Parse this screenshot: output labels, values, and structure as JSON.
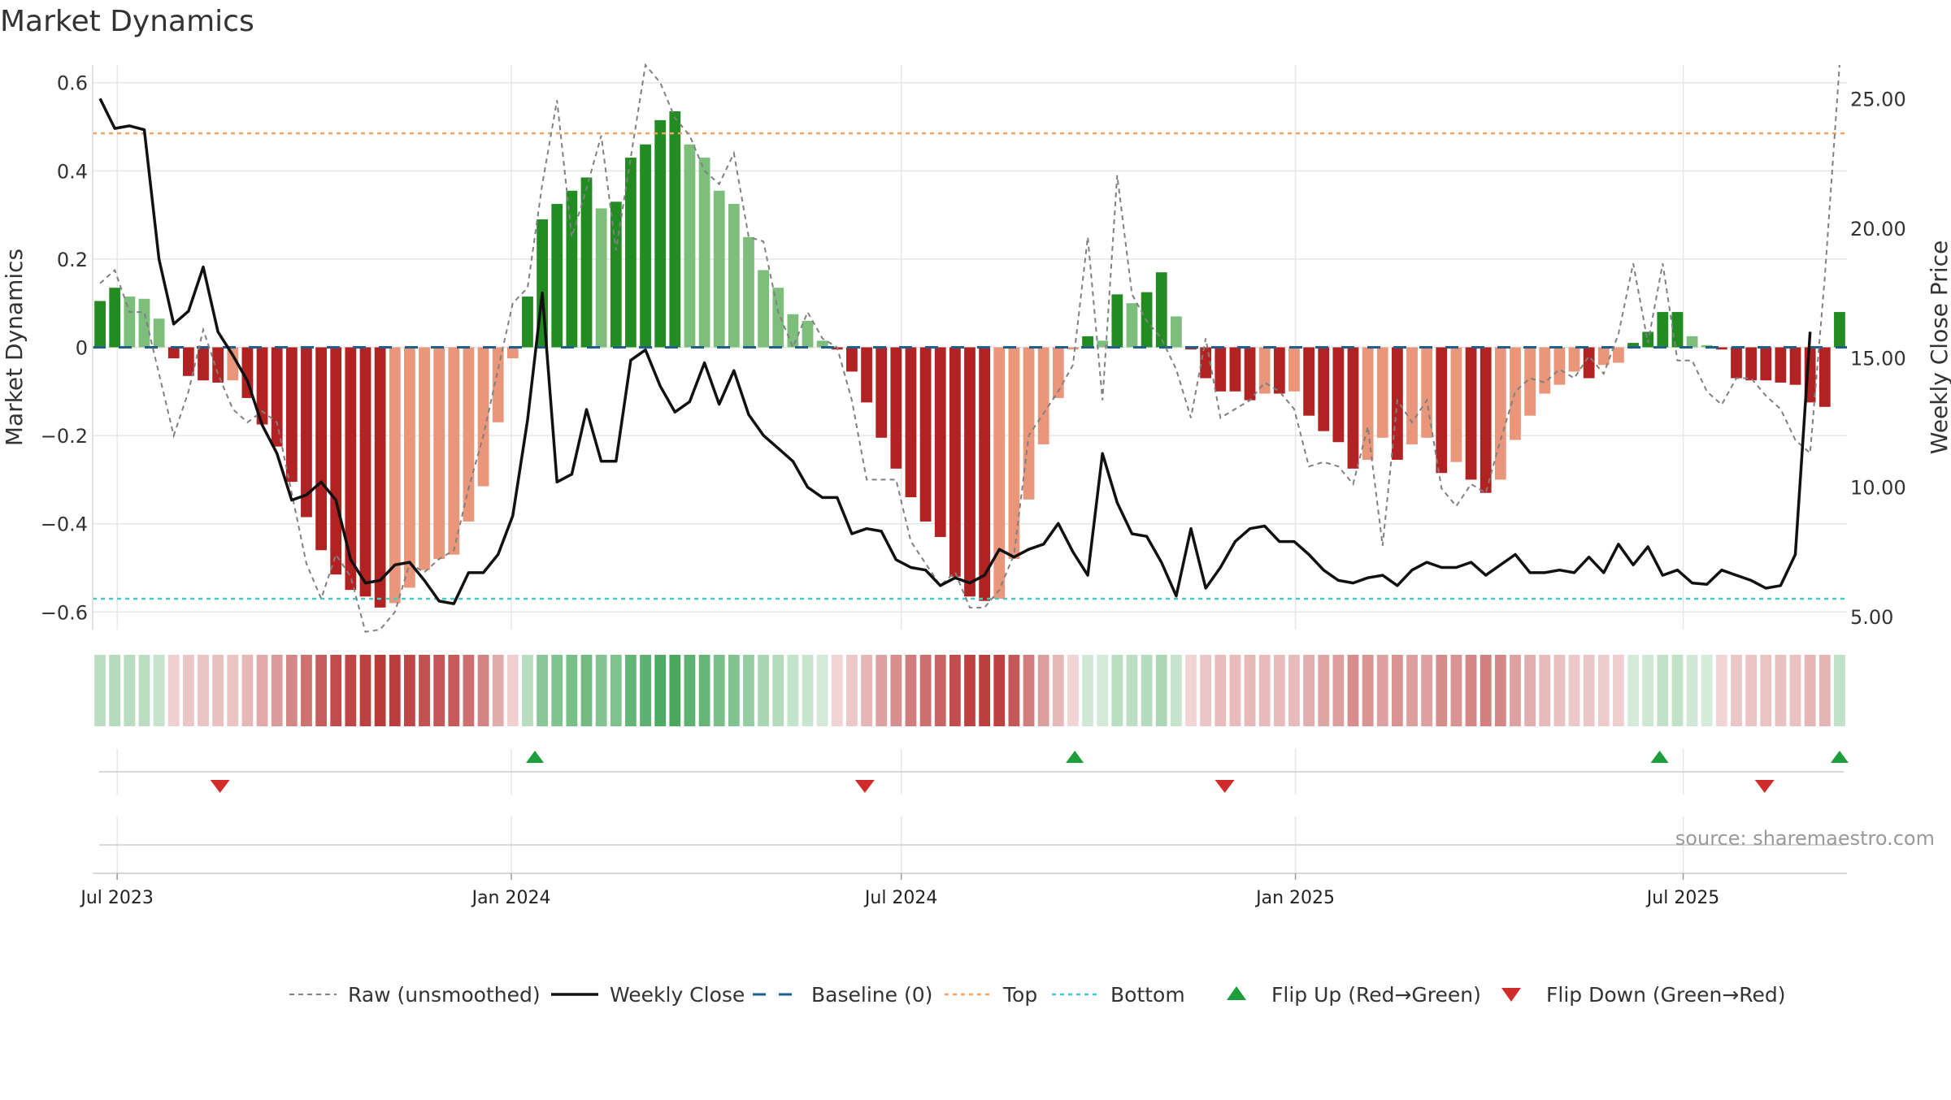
{
  "title": "Market Dynamics",
  "source": "source: sharemaestro.com",
  "colors": {
    "strong_green": "#228B22",
    "light_green": "#7DBE7D",
    "strong_red": "#B22222",
    "light_red": "#E9967A",
    "top_line": "#F4A460",
    "bottom_line": "#48C9C9",
    "baseline": "#1F5F8B",
    "raw_line": "#808080",
    "close_line": "#111111",
    "flip_up": "#1E9E3A",
    "flip_down": "#D22B2B",
    "grid": "#E6E6E6",
    "text": "#333333"
  },
  "legend": [
    {
      "label": "Raw (unsmoothed)",
      "icon": "dashed-gray-line"
    },
    {
      "label": "Weekly Close",
      "icon": "solid-black-line"
    },
    {
      "label": "Baseline (0)",
      "icon": "dashed-blue-line"
    },
    {
      "label": "Top",
      "icon": "dotted-orange-line"
    },
    {
      "label": "Bottom",
      "icon": "dotted-cyan-line"
    },
    {
      "label": "Flip Up (Red→Green)",
      "icon": "green-up-triangle"
    },
    {
      "label": "Flip Down (Green→Red)",
      "icon": "red-down-triangle"
    }
  ],
  "chart_data": {
    "type": "bar",
    "title": "Market Dynamics",
    "ylabel": "Market Dynamics",
    "y2label": "Weekly Close Price",
    "ylim": [
      -0.64,
      0.64
    ],
    "y2lim": [
      4.5,
      26.3
    ],
    "yticks": [
      0.6,
      0.4,
      0.2,
      0,
      -0.2,
      -0.4,
      -0.6
    ],
    "ytick_labels": [
      "0.6",
      "0.4",
      "0.2",
      "0",
      "−0.2",
      "−0.4",
      "−0.6"
    ],
    "y2ticks": [
      25,
      20,
      15,
      10,
      5
    ],
    "y2tick_labels": [
      "25.00",
      "20.00",
      "15.00",
      "10.00",
      "5.00"
    ],
    "x_ticks": [
      "2023-07-01",
      "2024-01-01",
      "2024-07-01",
      "2025-01-01",
      "2025-07-01"
    ],
    "x_tick_labels": [
      "Jul 2023",
      "Jan 2024",
      "Jul 2024",
      "Jan 2025",
      "Jul 2025"
    ],
    "first_week": "2023-06-23",
    "last_week": "2025-09-12",
    "top": 0.485,
    "bottom": -0.57,
    "baseline": 0,
    "grid": true,
    "legend_position": "bottom",
    "series": [
      {
        "name": "Market Dynamics",
        "values": [
          0.105,
          0.135,
          0.115,
          0.11,
          0.065,
          -0.025,
          -0.065,
          -0.075,
          -0.08,
          -0.075,
          -0.115,
          -0.175,
          -0.225,
          -0.305,
          -0.385,
          -0.46,
          -0.515,
          -0.55,
          -0.565,
          -0.59,
          -0.58,
          -0.545,
          -0.505,
          -0.48,
          -0.47,
          -0.395,
          -0.315,
          -0.17,
          -0.025,
          0.115,
          0.29,
          0.325,
          0.355,
          0.385,
          0.315,
          0.33,
          0.43,
          0.46,
          0.515,
          0.535,
          0.46,
          0.43,
          0.355,
          0.325,
          0.25,
          0.175,
          0.135,
          0.075,
          0.06,
          0.015,
          -0.005,
          -0.055,
          -0.125,
          -0.205,
          -0.275,
          -0.34,
          -0.395,
          -0.43,
          -0.52,
          -0.565,
          -0.575,
          -0.57,
          -0.48,
          -0.345,
          -0.22,
          -0.115,
          -0.005,
          0.025,
          0.015,
          0.12,
          0.1,
          0.125,
          0.17,
          0.07,
          -0.005,
          -0.07,
          -0.1,
          -0.1,
          -0.12,
          -0.105,
          -0.105,
          -0.1,
          -0.155,
          -0.19,
          -0.215,
          -0.275,
          -0.255,
          -0.205,
          -0.255,
          -0.22,
          -0.205,
          -0.285,
          -0.26,
          -0.3,
          -0.33,
          -0.3,
          -0.21,
          -0.155,
          -0.105,
          -0.085,
          -0.055,
          -0.07,
          -0.04,
          -0.035,
          0.01,
          0.035,
          0.08,
          0.08,
          0.025,
          0.005,
          -0.005,
          -0.07,
          -0.075,
          -0.075,
          -0.08,
          -0.085,
          -0.125,
          -0.135,
          0.08
        ]
      },
      {
        "name": "Raw (unsmoothed)",
        "values": [
          0.145,
          0.175,
          0.08,
          0.08,
          -0.06,
          -0.2,
          -0.1,
          0.04,
          -0.06,
          -0.14,
          -0.17,
          -0.145,
          -0.17,
          -0.33,
          -0.49,
          -0.57,
          -0.47,
          -0.52,
          -0.645,
          -0.64,
          -0.6,
          -0.49,
          -0.51,
          -0.48,
          -0.46,
          -0.32,
          -0.2,
          -0.05,
          0.1,
          0.135,
          0.37,
          0.56,
          0.25,
          0.36,
          0.48,
          0.22,
          0.43,
          0.64,
          0.6,
          0.52,
          0.48,
          0.4,
          0.37,
          0.44,
          0.25,
          0.24,
          0.08,
          0.0,
          0.08,
          0.02,
          0.0,
          -0.12,
          -0.3,
          -0.3,
          -0.3,
          -0.44,
          -0.49,
          -0.54,
          -0.51,
          -0.59,
          -0.59,
          -0.55,
          -0.47,
          -0.2,
          -0.15,
          -0.1,
          -0.04,
          0.25,
          -0.12,
          0.39,
          0.12,
          0.06,
          0.02,
          -0.05,
          -0.16,
          0.02,
          -0.16,
          -0.14,
          -0.12,
          -0.08,
          -0.1,
          -0.14,
          -0.27,
          -0.26,
          -0.27,
          -0.31,
          -0.18,
          -0.45,
          -0.12,
          -0.17,
          -0.12,
          -0.32,
          -0.36,
          -0.31,
          -0.33,
          -0.21,
          -0.1,
          -0.07,
          -0.08,
          -0.05,
          -0.07,
          -0.02,
          -0.06,
          0.03,
          0.19,
          0.01,
          0.19,
          -0.03,
          -0.03,
          -0.1,
          -0.13,
          -0.07,
          -0.07,
          -0.11,
          -0.14,
          -0.21,
          -0.24,
          0.16,
          0.64
        ]
      },
      {
        "name": "Weekly Close",
        "values": [
          25.0,
          23.85,
          23.95,
          23.8,
          18.8,
          16.3,
          16.8,
          18.5,
          16.0,
          15.1,
          14.1,
          12.4,
          11.3,
          9.5,
          9.7,
          10.2,
          9.5,
          7.2,
          6.3,
          6.4,
          7.0,
          7.1,
          6.4,
          5.6,
          5.5,
          6.7,
          6.7,
          7.4,
          8.9,
          12.6,
          17.5,
          10.2,
          10.5,
          13.0,
          11.0,
          11.0,
          14.9,
          15.3,
          13.9,
          12.9,
          13.3,
          14.8,
          13.2,
          14.5,
          12.8,
          12.0,
          11.5,
          11.0,
          10.0,
          9.6,
          9.6,
          8.2,
          8.4,
          8.3,
          7.2,
          6.9,
          6.8,
          6.2,
          6.5,
          6.3,
          6.6,
          7.6,
          7.3,
          7.6,
          7.8,
          8.6,
          7.5,
          6.6,
          11.3,
          9.4,
          8.2,
          8.1,
          7.1,
          5.8,
          8.4,
          6.1,
          6.9,
          7.9,
          8.4,
          8.5,
          7.9,
          7.9,
          7.4,
          6.8,
          6.4,
          6.3,
          6.5,
          6.6,
          6.2,
          6.8,
          7.1,
          6.9,
          6.9,
          7.1,
          6.6,
          7.0,
          7.4,
          6.7,
          6.7,
          6.8,
          6.7,
          7.3,
          6.7,
          7.8,
          7.0,
          7.7,
          6.6,
          6.8,
          6.3,
          6.25,
          6.8,
          6.6,
          6.4,
          6.1,
          6.2,
          7.4,
          16.0
        ]
      }
    ],
    "flip_up_dates": [
      "2024-01-12",
      "2024-09-20",
      "2025-06-20",
      "2025-09-12"
    ],
    "flip_down_dates": [
      "2023-08-18",
      "2024-06-14",
      "2024-11-29",
      "2025-08-08"
    ]
  }
}
